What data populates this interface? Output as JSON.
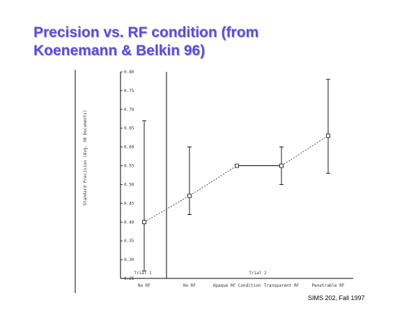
{
  "slide": {
    "title_line1": "Precision vs. RF condition (from",
    "title_line2": "Koenemann & Belkin 96)",
    "footer": "SIMS 202, Fall 1997"
  },
  "colors": {
    "title": "#5b4fd6",
    "title_shadow": "#b9b2ea",
    "axis": "#000000",
    "data": "#333333"
  },
  "chart_data": {
    "type": "line",
    "ylabel": "Standard Precision (Avg. 30 Documents)",
    "xlabel": "",
    "ylim": [
      0.25,
      0.8
    ],
    "yticks": [
      "0.25",
      "0.30",
      "0.35",
      "0.40",
      "0.45",
      "0.50",
      "0.55",
      "0.60",
      "0.65",
      "0.70",
      "0.75",
      "0.80"
    ],
    "ytick_values": [
      0.25,
      0.3,
      0.35,
      0.4,
      0.45,
      0.5,
      0.55,
      0.6,
      0.65,
      0.7,
      0.75,
      0.8
    ],
    "categories": [
      "No RF",
      "No RF",
      "Opaque RF Condition",
      "Transparent RF",
      "Penetrable RF"
    ],
    "trial_labels": [
      "Trial 1",
      "Trial 2"
    ],
    "grid": false,
    "series": [
      {
        "values": [
          0.4,
          0.47,
          0.55,
          0.55,
          0.63
        ],
        "error_low": [
          0.27,
          0.42,
          0.55,
          0.5,
          0.53
        ],
        "error_high": [
          0.67,
          0.6,
          0.55,
          0.6,
          0.78
        ]
      }
    ]
  }
}
